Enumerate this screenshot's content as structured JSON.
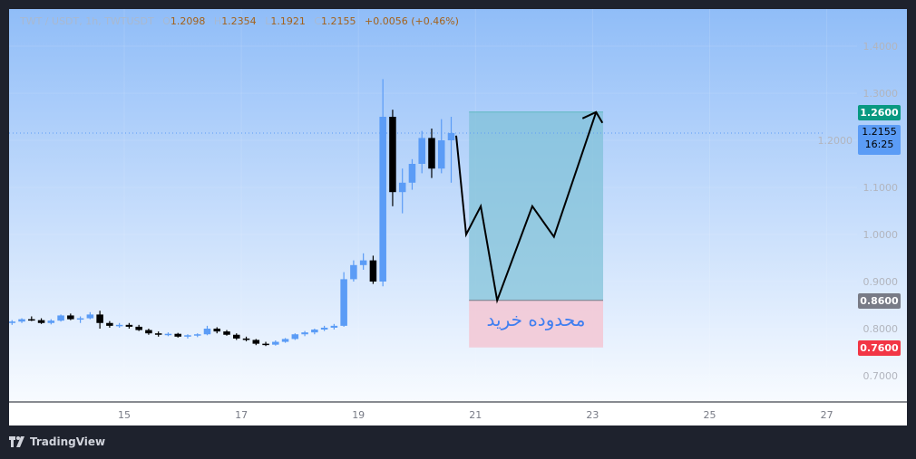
{
  "legend": {
    "symbol": "TWT / USDT, 1h, TWTUSDT",
    "o_label": "O",
    "o": "1.2098",
    "h_label": "H",
    "h": "1.2354",
    "l_label": "L",
    "l": "1.1921",
    "c_label": "C",
    "c": "1.2155",
    "change": "+0.0056 (+0.46%)"
  },
  "price_labels": {
    "target": "1.2600",
    "current": "1.2155",
    "countdown": "16:25",
    "entry": "0.8600",
    "stop": "0.7600"
  },
  "zone_label": "محدوده خرید",
  "brand": "TradingView",
  "colors": {
    "up": "#5b9cf6",
    "down": "#000000",
    "target": "#089981",
    "current": "#5b9cf6",
    "entry": "#787b86",
    "stop": "#f23645",
    "profit_zone": "#7ec0d6",
    "loss_zone": "#f3c9d6"
  },
  "chart_data": {
    "type": "candlestick",
    "timeframe": "1h",
    "x_unit": "day of month",
    "xticks": [
      15,
      17,
      19,
      21,
      23,
      25,
      27
    ],
    "xlim": [
      13.0,
      28.3
    ],
    "yticks": [
      "0.7000",
      "0.8000",
      "0.9000",
      "1.0000",
      "1.1000",
      "1.2000",
      "1.3000",
      "1.4000"
    ],
    "ylim": [
      0.645,
      1.48
    ],
    "candle_start_day": 13.0,
    "candle_step_days": 0.1667,
    "ohlc": [
      [
        0.812,
        0.818,
        0.808,
        0.815
      ],
      [
        0.815,
        0.822,
        0.812,
        0.82
      ],
      [
        0.82,
        0.826,
        0.816,
        0.818
      ],
      [
        0.818,
        0.822,
        0.81,
        0.812
      ],
      [
        0.812,
        0.82,
        0.809,
        0.817
      ],
      [
        0.817,
        0.83,
        0.815,
        0.828
      ],
      [
        0.828,
        0.832,
        0.818,
        0.82
      ],
      [
        0.82,
        0.826,
        0.812,
        0.822
      ],
      [
        0.822,
        0.835,
        0.82,
        0.83
      ],
      [
        0.83,
        0.838,
        0.8,
        0.812
      ],
      [
        0.812,
        0.816,
        0.802,
        0.806
      ],
      [
        0.806,
        0.812,
        0.802,
        0.808
      ],
      [
        0.808,
        0.812,
        0.8,
        0.804
      ],
      [
        0.804,
        0.808,
        0.795,
        0.797
      ],
      [
        0.797,
        0.8,
        0.787,
        0.79
      ],
      [
        0.79,
        0.794,
        0.783,
        0.787
      ],
      [
        0.787,
        0.792,
        0.784,
        0.789
      ],
      [
        0.789,
        0.791,
        0.781,
        0.783
      ],
      [
        0.783,
        0.788,
        0.779,
        0.786
      ],
      [
        0.786,
        0.79,
        0.782,
        0.788
      ],
      [
        0.788,
        0.806,
        0.786,
        0.8
      ],
      [
        0.8,
        0.803,
        0.79,
        0.794
      ],
      [
        0.794,
        0.797,
        0.785,
        0.787
      ],
      [
        0.787,
        0.79,
        0.776,
        0.779
      ],
      [
        0.779,
        0.783,
        0.773,
        0.776
      ],
      [
        0.776,
        0.778,
        0.765,
        0.768
      ],
      [
        0.768,
        0.772,
        0.763,
        0.766
      ],
      [
        0.766,
        0.775,
        0.764,
        0.772
      ],
      [
        0.772,
        0.78,
        0.77,
        0.778
      ],
      [
        0.778,
        0.79,
        0.776,
        0.788
      ],
      [
        0.788,
        0.795,
        0.784,
        0.792
      ],
      [
        0.792,
        0.8,
        0.788,
        0.798
      ],
      [
        0.798,
        0.806,
        0.795,
        0.802
      ],
      [
        0.802,
        0.81,
        0.798,
        0.806
      ],
      [
        0.806,
        0.92,
        0.804,
        0.905
      ],
      [
        0.905,
        0.945,
        0.9,
        0.935
      ],
      [
        0.935,
        0.96,
        0.925,
        0.945
      ],
      [
        0.945,
        0.955,
        0.895,
        0.9
      ],
      [
        0.9,
        1.33,
        0.89,
        1.25
      ],
      [
        1.25,
        1.265,
        1.06,
        1.09
      ],
      [
        1.09,
        1.14,
        1.045,
        1.11
      ],
      [
        1.11,
        1.16,
        1.095,
        1.15
      ],
      [
        1.15,
        1.22,
        1.13,
        1.205
      ],
      [
        1.205,
        1.225,
        1.12,
        1.14
      ],
      [
        1.14,
        1.245,
        1.13,
        1.2
      ],
      [
        1.2,
        1.25,
        1.11,
        1.2155
      ]
    ],
    "last_price": 1.2155,
    "long_position": {
      "start_day": 20.89,
      "end_day": 23.18,
      "target": 1.26,
      "entry": 0.86,
      "stop": 0.76
    },
    "projection_path": [
      [
        20.67,
        1.21
      ],
      [
        20.84,
        1.0
      ],
      [
        21.09,
        1.06
      ],
      [
        21.37,
        0.86
      ],
      [
        21.97,
        1.06
      ],
      [
        22.34,
        0.995
      ],
      [
        23.06,
        1.26
      ]
    ]
  }
}
